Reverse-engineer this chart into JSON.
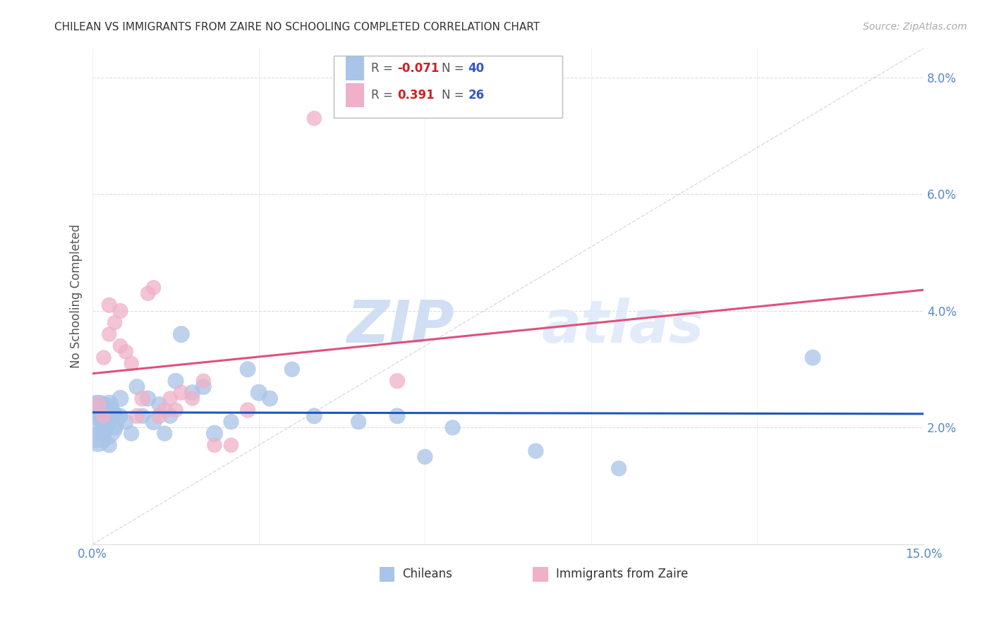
{
  "title": "CHILEAN VS IMMIGRANTS FROM ZAIRE NO SCHOOLING COMPLETED CORRELATION CHART",
  "source": "Source: ZipAtlas.com",
  "ylabel": "No Schooling Completed",
  "xlim": [
    0.0,
    0.15
  ],
  "ylim": [
    0.0,
    0.085
  ],
  "chileans_x": [
    0.001,
    0.001,
    0.001,
    0.002,
    0.002,
    0.002,
    0.003,
    0.003,
    0.003,
    0.004,
    0.004,
    0.005,
    0.005,
    0.006,
    0.007,
    0.008,
    0.009,
    0.01,
    0.011,
    0.012,
    0.013,
    0.014,
    0.015,
    0.016,
    0.018,
    0.02,
    0.022,
    0.025,
    0.028,
    0.03,
    0.032,
    0.036,
    0.04,
    0.048,
    0.055,
    0.06,
    0.065,
    0.08,
    0.095,
    0.13
  ],
  "chileans_y": [
    0.021,
    0.023,
    0.018,
    0.022,
    0.02,
    0.019,
    0.024,
    0.021,
    0.017,
    0.022,
    0.02,
    0.025,
    0.022,
    0.021,
    0.019,
    0.027,
    0.022,
    0.025,
    0.021,
    0.024,
    0.019,
    0.022,
    0.028,
    0.036,
    0.026,
    0.027,
    0.019,
    0.021,
    0.03,
    0.026,
    0.025,
    0.03,
    0.022,
    0.021,
    0.022,
    0.015,
    0.02,
    0.016,
    0.013,
    0.032
  ],
  "chileans_size": [
    350,
    120,
    80,
    60,
    40,
    35,
    45,
    35,
    30,
    35,
    30,
    35,
    30,
    30,
    30,
    32,
    30,
    32,
    35,
    30,
    30,
    30,
    32,
    35,
    32,
    32,
    35,
    30,
    32,
    35,
    32,
    30,
    32,
    30,
    32,
    30,
    30,
    30,
    30,
    32
  ],
  "zaire_x": [
    0.001,
    0.002,
    0.002,
    0.003,
    0.003,
    0.004,
    0.005,
    0.005,
    0.006,
    0.007,
    0.008,
    0.009,
    0.01,
    0.011,
    0.012,
    0.013,
    0.014,
    0.015,
    0.016,
    0.018,
    0.02,
    0.022,
    0.025,
    0.028,
    0.04,
    0.055
  ],
  "zaire_y": [
    0.024,
    0.032,
    0.022,
    0.036,
    0.041,
    0.038,
    0.04,
    0.034,
    0.033,
    0.031,
    0.022,
    0.025,
    0.043,
    0.044,
    0.022,
    0.023,
    0.025,
    0.023,
    0.026,
    0.025,
    0.028,
    0.017,
    0.017,
    0.023,
    0.073,
    0.028
  ],
  "zaire_size": [
    30,
    28,
    28,
    28,
    30,
    28,
    30,
    28,
    28,
    28,
    30,
    32,
    28,
    28,
    30,
    30,
    28,
    28,
    30,
    28,
    28,
    28,
    28,
    30,
    28,
    30
  ],
  "chilean_color": "#a8c4e8",
  "zaire_color": "#f0b0c8",
  "chilean_line_color": "#2255bb",
  "zaire_line_color": "#e0507a",
  "diag_color": "#cccccc",
  "grid_color": "#dddddd",
  "R_chilean": "-0.071",
  "N_chilean": "40",
  "R_zaire": "0.391",
  "N_zaire": "26",
  "legend_chilean": "Chileans",
  "legend_zaire": "Immigrants from Zaire",
  "watermark_zip": "ZIP",
  "watermark_atlas": "atlas",
  "bg_color": "#ffffff",
  "tick_color": "#5588cc",
  "title_color": "#333333",
  "source_color": "#aaaaaa",
  "ylabel_color": "#555555"
}
